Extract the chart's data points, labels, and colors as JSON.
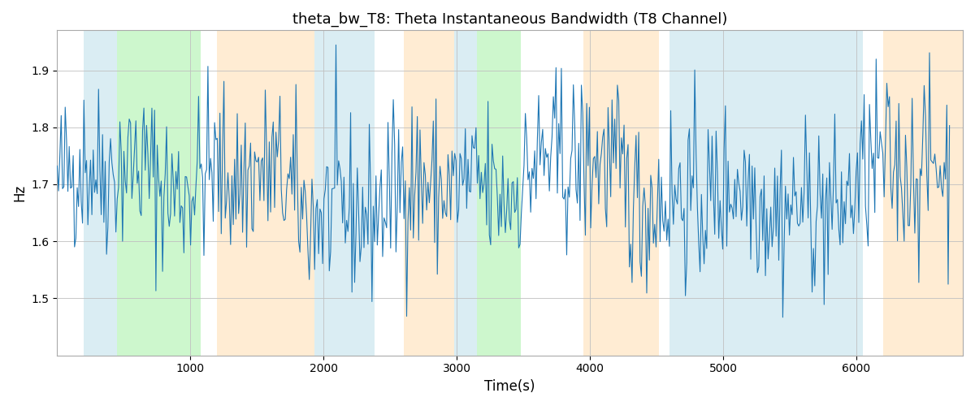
{
  "title": "theta_bw_T8: Theta Instantaneous Bandwidth (T8 Channel)",
  "xlabel": "Time(s)",
  "ylabel": "Hz",
  "xlim": [
    0,
    6800
  ],
  "ylim": [
    1.4,
    1.97
  ],
  "line_color": "#1f77b4",
  "line_width": 0.8,
  "background_color": "#ffffff",
  "grid_color": "#c0c0c0",
  "yticks": [
    1.5,
    1.6,
    1.7,
    1.8,
    1.9
  ],
  "xticks": [
    1000,
    2000,
    3000,
    4000,
    5000,
    6000
  ],
  "bands": [
    {
      "xmin": 200,
      "xmax": 450,
      "color": "#add8e6",
      "alpha": 0.45
    },
    {
      "xmin": 450,
      "xmax": 1080,
      "color": "#90ee90",
      "alpha": 0.45
    },
    {
      "xmin": 1200,
      "xmax": 1930,
      "color": "#ffd59e",
      "alpha": 0.45
    },
    {
      "xmin": 1930,
      "xmax": 2380,
      "color": "#add8e6",
      "alpha": 0.45
    },
    {
      "xmin": 2600,
      "xmax": 2980,
      "color": "#ffd59e",
      "alpha": 0.45
    },
    {
      "xmin": 2980,
      "xmax": 3150,
      "color": "#add8e6",
      "alpha": 0.45
    },
    {
      "xmin": 3150,
      "xmax": 3480,
      "color": "#90ee90",
      "alpha": 0.45
    },
    {
      "xmin": 3950,
      "xmax": 4520,
      "color": "#ffd59e",
      "alpha": 0.45
    },
    {
      "xmin": 4600,
      "xmax": 6050,
      "color": "#add8e6",
      "alpha": 0.45
    },
    {
      "xmin": 6200,
      "xmax": 6800,
      "color": "#ffd59e",
      "alpha": 0.45
    }
  ],
  "seed": 42,
  "n_points": 670,
  "t_start": 0,
  "t_end": 6700,
  "mean": 1.695,
  "std": 0.075
}
